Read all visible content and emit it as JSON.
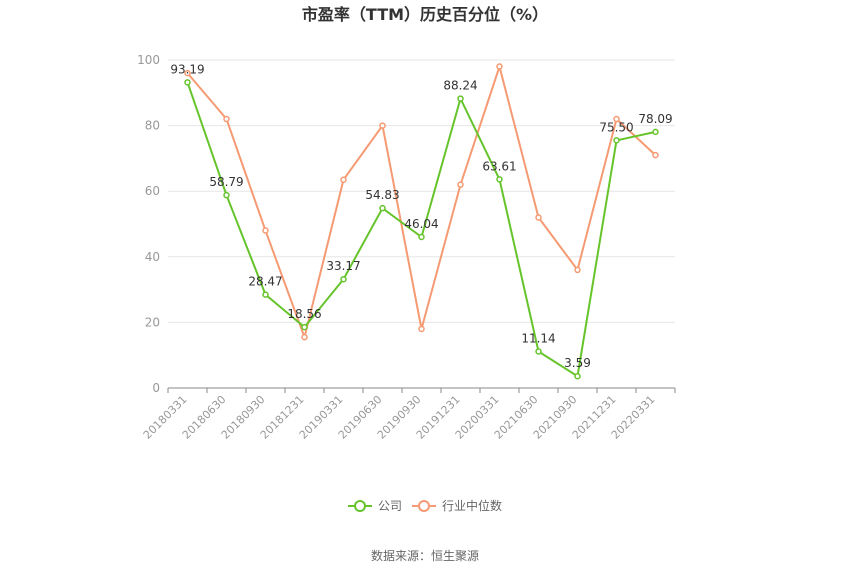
{
  "chart_data": {
    "type": "line",
    "title": "市盈率（TTM）历史百分位（%）",
    "categories": [
      "20180331",
      "20180630",
      "20180930",
      "20181231",
      "20190331",
      "20190630",
      "20190930",
      "20191231",
      "20200331",
      "20210630",
      "20210930",
      "20211231",
      "20220331"
    ],
    "series": [
      {
        "name": "公司",
        "color": "#66c42b",
        "values": [
          93.19,
          58.79,
          28.47,
          18.56,
          33.17,
          54.83,
          46.04,
          88.24,
          63.61,
          11.14,
          3.59,
          75.5,
          78.09
        ],
        "labels": [
          "93.19",
          "58.79",
          "28.47",
          "18.56",
          "33.17",
          "54.83",
          "46.04",
          "88.24",
          "63.61",
          "11.14",
          "3.59",
          "75.50",
          "78.09"
        ]
      },
      {
        "name": "行业中位数",
        "color": "#f59a72",
        "values": [
          96,
          82,
          48,
          15.5,
          63.5,
          80,
          18,
          62,
          98,
          52,
          36,
          82,
          71
        ]
      }
    ],
    "ylim": [
      0,
      100
    ],
    "yticks": [
      0,
      20,
      40,
      60,
      80,
      100
    ],
    "grid": true,
    "legend": "bottom-center"
  },
  "source_text": "数据来源：恒生聚源"
}
